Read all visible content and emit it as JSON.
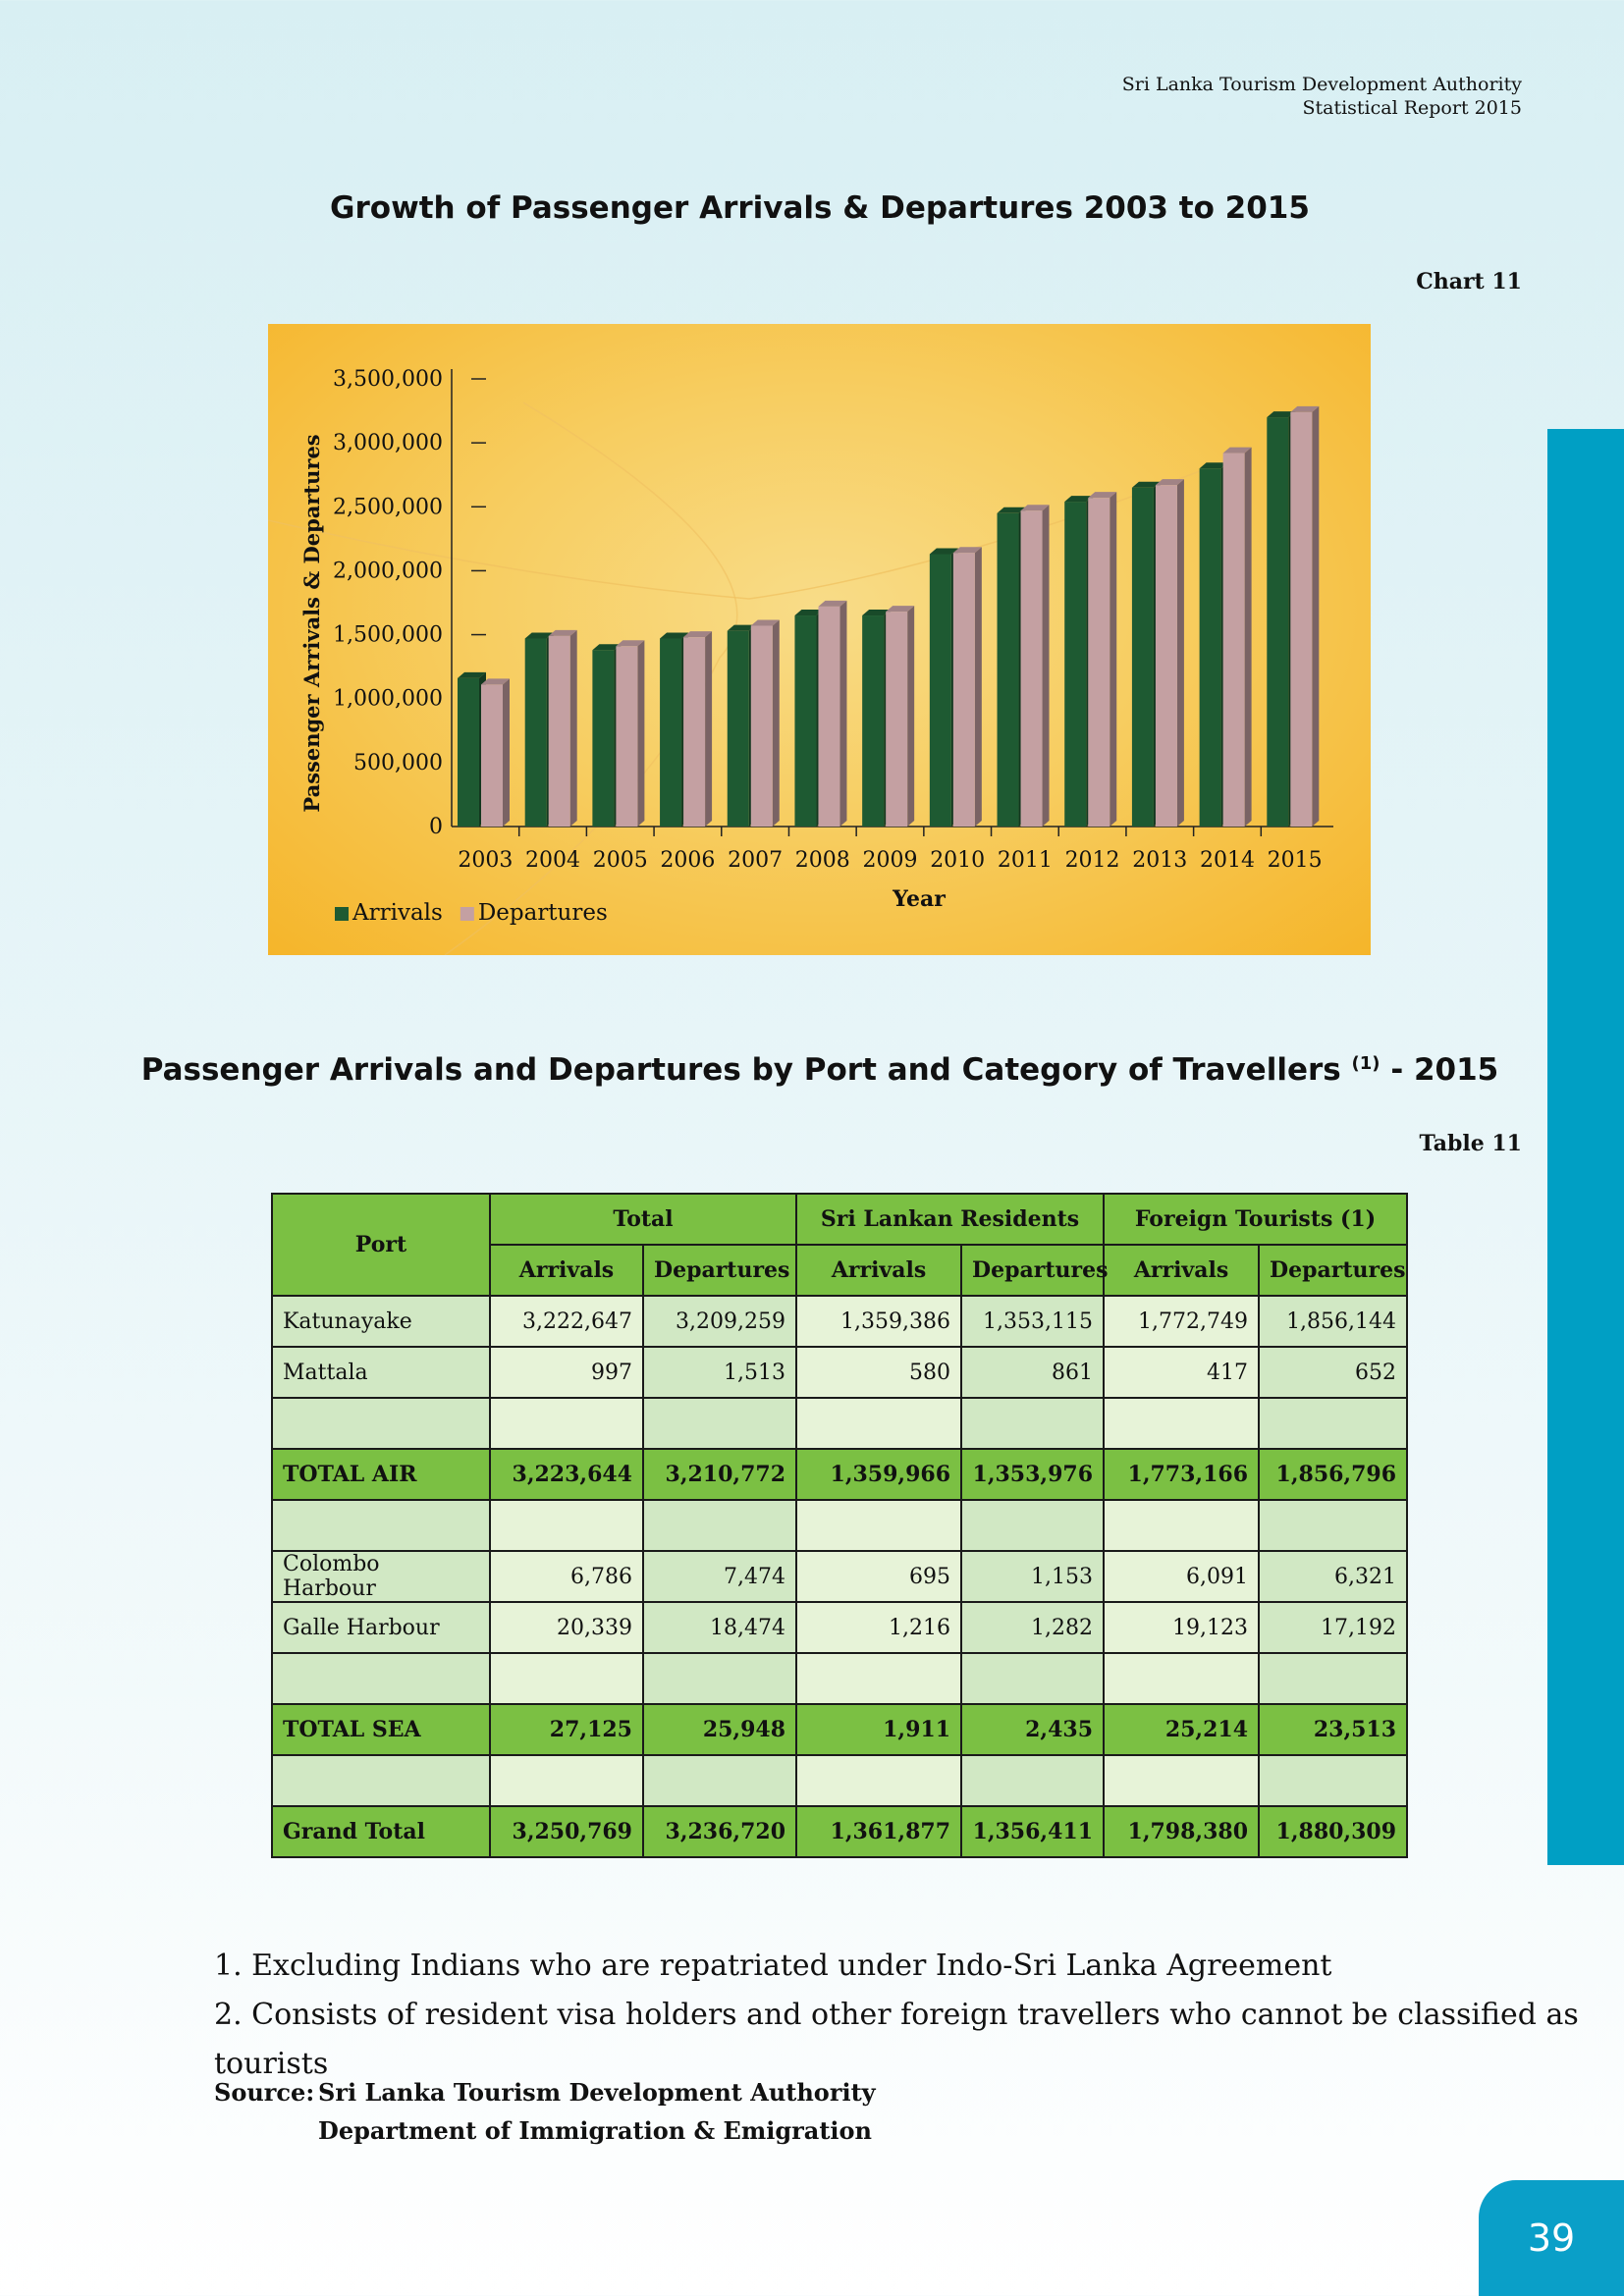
{
  "header": {
    "org": "Sri Lanka Tourism Development Authority",
    "report": "Statistical Report 2015"
  },
  "chart_section": {
    "title": "Growth of Passenger Arrivals & Departures 2003 to 2015",
    "ref": "Chart 11"
  },
  "chart_data": {
    "type": "bar",
    "categories": [
      "2003",
      "2004",
      "2005",
      "2006",
      "2007",
      "2008",
      "2009",
      "2010",
      "2011",
      "2012",
      "2013",
      "2014",
      "2015"
    ],
    "series": [
      {
        "name": "Arrivals",
        "color": "#1e5a32",
        "values": [
          1160000,
          1470000,
          1380000,
          1470000,
          1530000,
          1650000,
          1650000,
          2130000,
          2450000,
          2540000,
          2650000,
          2800000,
          3200000
        ]
      },
      {
        "name": "Departures",
        "color": "#c4a0a2",
        "values": [
          1110000,
          1490000,
          1410000,
          1480000,
          1570000,
          1720000,
          1680000,
          2140000,
          2470000,
          2570000,
          2670000,
          2920000,
          3240000
        ]
      }
    ],
    "xlabel": "Year",
    "ylabel": "Passenger Arrivals & Departures",
    "ylim": [
      0,
      3500000
    ],
    "yticks": [
      "0",
      "500,000",
      "1,000,000",
      "1,500,000",
      "2,000,000",
      "2,500,000",
      "3,000,000",
      "3,500,000"
    ],
    "legend_position": "bottom-left"
  },
  "table_section": {
    "title_main": "Passenger Arrivals and Departures by Port and Category of Travellers",
    "title_sup": "(1)",
    "title_year": "- 2015",
    "ref": "Table 11"
  },
  "table": {
    "port_header": "Port",
    "groups": [
      "Total",
      "Sri Lankan Residents",
      "Foreign Tourists (1)"
    ],
    "subheaders": [
      "Arrivals",
      "Departures",
      "Arrivals",
      "Departures",
      "Arrivals",
      "Departures"
    ],
    "rows": [
      {
        "port": "Katunayake",
        "values": [
          "3,222,647",
          "3,209,259",
          "1,359,386",
          "1,353,115",
          "1,772,749",
          "1,856,144"
        ]
      },
      {
        "port": "Mattala",
        "values": [
          "997",
          "1,513",
          "580",
          "861",
          "417",
          "652"
        ]
      },
      {
        "port": "",
        "values": [
          "",
          "",
          "",
          "",
          "",
          ""
        ]
      },
      {
        "port": "TOTAL AIR",
        "total": true,
        "values": [
          "3,223,644",
          "3,210,772",
          "1,359,966",
          "1,353,976",
          "1,773,166",
          "1,856,796"
        ]
      },
      {
        "port": "",
        "values": [
          "",
          "",
          "",
          "",
          "",
          ""
        ]
      },
      {
        "port": "Colombo Harbour",
        "values": [
          "6,786",
          "7,474",
          "695",
          "1,153",
          "6,091",
          "6,321"
        ]
      },
      {
        "port": "Galle Harbour",
        "values": [
          "20,339",
          "18,474",
          "1,216",
          "1,282",
          "19,123",
          "17,192"
        ]
      },
      {
        "port": "",
        "values": [
          "",
          "",
          "",
          "",
          "",
          ""
        ]
      },
      {
        "port": "TOTAL SEA",
        "total": true,
        "values": [
          "27,125",
          "25,948",
          "1,911",
          "2,435",
          "25,214",
          "23,513"
        ]
      },
      {
        "port": "",
        "values": [
          "",
          "",
          "",
          "",
          "",
          ""
        ]
      },
      {
        "port": "Grand Total",
        "total": true,
        "values": [
          "3,250,769",
          "3,236,720",
          "1,361,877",
          "1,356,411",
          "1,798,380",
          "1,880,309"
        ]
      }
    ]
  },
  "notes": [
    "1. Excluding Indians who are repatriated under Indo-Sri Lanka Agreement",
    "2. Consists of resident visa holders and other foreign travellers who cannot be classified as tourists"
  ],
  "source": {
    "label": "Source:",
    "lines": [
      "Sri Lanka Tourism Development Authority",
      "Department of Immigration & Emigration"
    ]
  },
  "page_number": "39"
}
